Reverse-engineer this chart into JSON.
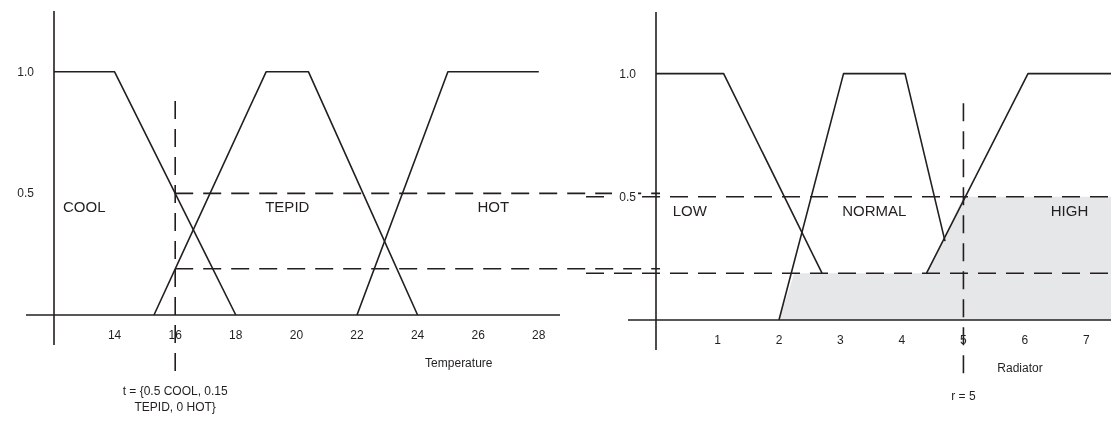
{
  "chart_data": [
    {
      "type": "line",
      "xlabel": "Temperature",
      "xlim": [
        12,
        28.7
      ],
      "ylim": [
        0,
        1.25
      ],
      "xticks": [
        14,
        16,
        18,
        20,
        22,
        24,
        26,
        28
      ],
      "yticks": [
        0.5,
        {
          "value": 1,
          "label": "1.0"
        }
      ],
      "line_style": "solid",
      "series": [
        {
          "color": "#231f20",
          "x": [
            12,
            14,
            18
          ],
          "values": [
            1,
            1,
            0
          ]
        },
        {
          "color": "#231f20",
          "x": [
            15.3,
            19,
            20.4,
            24
          ],
          "values": [
            0,
            1,
            1,
            0
          ]
        },
        {
          "color": "#231f20",
          "x": [
            22,
            25,
            28
          ],
          "values": [
            0,
            1,
            1
          ]
        }
      ],
      "ref_lines": [
        {
          "axis": "x",
          "value": 16,
          "label": "t = {0.5 COOL, 0.15 TEPID, 0 HOT}",
          "line_style": "dashed"
        },
        {
          "axis": "y",
          "value": 0.5,
          "line_style": "dashed"
        },
        {
          "axis": "y",
          "value": 0.19,
          "line_style": "dashed"
        }
      ],
      "annotations": [
        "COOL",
        "TEPID",
        "HOT"
      ]
    },
    {
      "type": "line",
      "xlabel": "Radiator",
      "xlim": [
        0,
        7.4
      ],
      "ylim": [
        0,
        1.25
      ],
      "xticks": [
        1,
        2,
        3,
        4,
        5,
        6,
        7
      ],
      "yticks": [
        0.5,
        {
          "value": 1,
          "label": "1.0"
        }
      ],
      "line_style": "solid",
      "series": [
        {
          "type": "area",
          "color": "#e6e7e8",
          "x": [
            2,
            2.25,
            4.4,
            5,
            7.4
          ],
          "values": [
            0,
            0.19,
            0.19,
            0.5,
            0.5
          ]
        },
        {
          "color": "#231f20",
          "x": [
            0,
            1.1,
            2.7
          ],
          "values": [
            1,
            1,
            0.19
          ]
        },
        {
          "color": "#231f20",
          "x": [
            2,
            3.05,
            4.05,
            4.7
          ],
          "values": [
            0,
            1,
            1,
            0.32
          ]
        },
        {
          "color": "#231f20",
          "x": [
            4.4,
            6.05,
            7.4
          ],
          "values": [
            0.19,
            1,
            1
          ]
        }
      ],
      "ref_lines": [
        {
          "axis": "x",
          "value": 5,
          "label": "r = 5",
          "line_style": "dashed"
        },
        {
          "axis": "y",
          "value": 0.5,
          "line_style": "dashed"
        },
        {
          "axis": "y",
          "value": 0.19,
          "line_style": "dashed"
        }
      ],
      "annotations": [
        "LOW",
        "NORMAL",
        "HIGH"
      ]
    }
  ]
}
